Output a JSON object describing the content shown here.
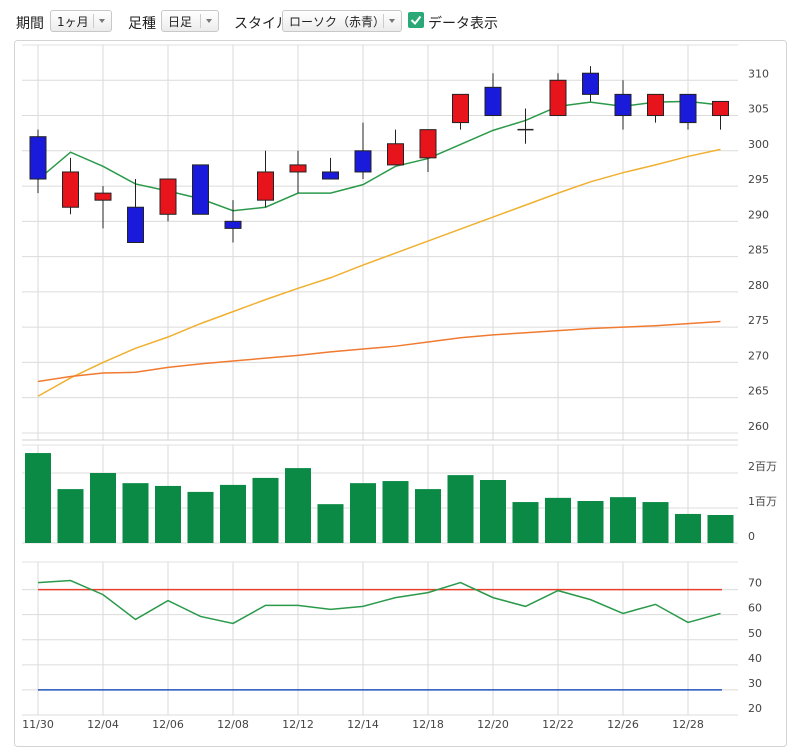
{
  "toolbar": {
    "period_label": "期間",
    "period": "1ヶ月",
    "kind_label": "足種",
    "kind": "日足",
    "style_label": "スタイル",
    "style": "ローソク（赤青）",
    "data_display": "データ表示",
    "data_display_checked": true
  },
  "chart_data": [
    {
      "type": "candlestick",
      "up_color": "#e8141c",
      "down_color": "#1a1adb",
      "open": [
        302,
        292,
        293,
        292,
        291,
        298,
        290,
        293,
        297,
        297,
        300,
        298,
        299,
        304,
        309,
        303,
        305,
        311,
        308,
        305,
        308,
        305
      ],
      "high": [
        303,
        299,
        295,
        296,
        296,
        298,
        293,
        300,
        300,
        299,
        304,
        303,
        303,
        308,
        311,
        306,
        311,
        312,
        310,
        308,
        308,
        307
      ],
      "low": [
        294,
        291,
        289,
        287,
        290,
        291,
        287,
        292,
        294,
        296,
        296,
        298,
        297,
        303,
        305,
        301,
        305,
        307,
        303,
        304,
        303,
        303
      ],
      "close": [
        296,
        297,
        294,
        287,
        296,
        291,
        289,
        297,
        298,
        296,
        297,
        301,
        303,
        308,
        305,
        303,
        310,
        308,
        305,
        308,
        304,
        307
      ],
      "series": [
        {
          "color": "#2a9a4a",
          "values": [
            295.9,
            299.8,
            297.8,
            295.3,
            294.3,
            293.2,
            291.5,
            292,
            294,
            294,
            295.2,
            297.8,
            298.9,
            300.9,
            302.9,
            304.3,
            306.3,
            306.9,
            306.3,
            306.9,
            307,
            306.5
          ]
        },
        {
          "color": "#f0b030",
          "values": [
            265.2,
            267.8,
            270,
            272,
            273.6,
            275.5,
            277.2,
            278.9,
            280.5,
            282,
            283.8,
            285.5,
            287.2,
            288.9,
            290.6,
            292.3,
            294,
            295.6,
            296.9,
            298,
            299.2,
            300.2
          ]
        },
        {
          "color": "#f07a30",
          "values": [
            267.3,
            268,
            268.5,
            268.6,
            269.3,
            269.8,
            270.2,
            270.6,
            271,
            271.5,
            271.9,
            272.3,
            272.9,
            273.5,
            273.9,
            274.2,
            274.5,
            274.8,
            275,
            275.2,
            275.5,
            275.8
          ]
        }
      ],
      "ylim": [
        259,
        315
      ],
      "yticks": [
        260,
        265,
        270,
        275,
        280,
        285,
        290,
        295,
        300,
        305,
        310
      ],
      "grid": true
    },
    {
      "type": "bar",
      "color": "#0a8a44",
      "values": [
        2570000,
        1540000,
        2000000,
        1710000,
        1630000,
        1460000,
        1660000,
        1860000,
        2140000,
        1110000,
        1710000,
        1770000,
        1540000,
        1940000,
        1800000,
        1170000,
        1290000,
        1200000,
        1310000,
        1170000,
        830000,
        800000
      ],
      "ylim": [
        0,
        2800000
      ],
      "yticks": [
        0,
        {
          "value": 1000000,
          "label": "1百万"
        },
        {
          "value": 2000000,
          "label": "2百万"
        }
      ],
      "grid": true
    },
    {
      "type": "line",
      "categories": [
        "11/30",
        null,
        "12/04",
        null,
        "12/06",
        null,
        "12/08",
        null,
        "12/12",
        null,
        "12/14",
        null,
        "12/18",
        null,
        "12/20",
        null,
        "12/22",
        null,
        "12/26",
        null,
        "12/28",
        null
      ],
      "series": [
        {
          "color": "#2a9a4a",
          "values": [
            72.8,
            73.6,
            68,
            58.1,
            65.6,
            59.3,
            56.5,
            63.7,
            63.7,
            62.1,
            63.3,
            66.8,
            68.8,
            72.8,
            66.8,
            63.3,
            69.6,
            66,
            60.5,
            64.1,
            56.9,
            60.5
          ]
        }
      ],
      "reference_lines": [
        {
          "value": 70,
          "color": "#e8402a"
        },
        {
          "value": 30,
          "color": "#2255bb"
        }
      ],
      "ylim": [
        20,
        81
      ],
      "yticks": [
        20,
        30,
        40,
        50,
        60,
        70
      ],
      "grid": true
    }
  ]
}
